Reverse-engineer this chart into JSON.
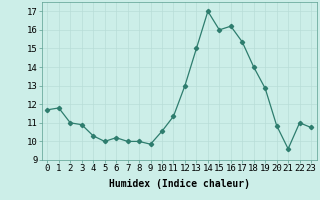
{
  "x": [
    0,
    1,
    2,
    3,
    4,
    5,
    6,
    7,
    8,
    9,
    10,
    11,
    12,
    13,
    14,
    15,
    16,
    17,
    18,
    19,
    20,
    21,
    22,
    23
  ],
  "y": [
    11.7,
    11.8,
    11.0,
    10.9,
    10.3,
    10.0,
    10.2,
    10.0,
    10.0,
    9.85,
    10.55,
    11.35,
    13.0,
    15.0,
    17.0,
    16.0,
    16.2,
    15.35,
    14.0,
    12.85,
    10.85,
    9.6,
    11.0,
    10.75
  ],
  "xlabel": "Humidex (Indice chaleur)",
  "ylim": [
    9,
    17.5
  ],
  "xlim": [
    -0.5,
    23.5
  ],
  "yticks": [
    9,
    10,
    11,
    12,
    13,
    14,
    15,
    16,
    17
  ],
  "xticks": [
    0,
    1,
    2,
    3,
    4,
    5,
    6,
    7,
    8,
    9,
    10,
    11,
    12,
    13,
    14,
    15,
    16,
    17,
    18,
    19,
    20,
    21,
    22,
    23
  ],
  "line_color": "#2e7d6e",
  "marker": "D",
  "marker_size": 2.2,
  "bg_color": "#cceee8",
  "grid_color": "#b8ddd7",
  "xlabel_fontsize": 7,
  "tick_fontsize": 6.5
}
